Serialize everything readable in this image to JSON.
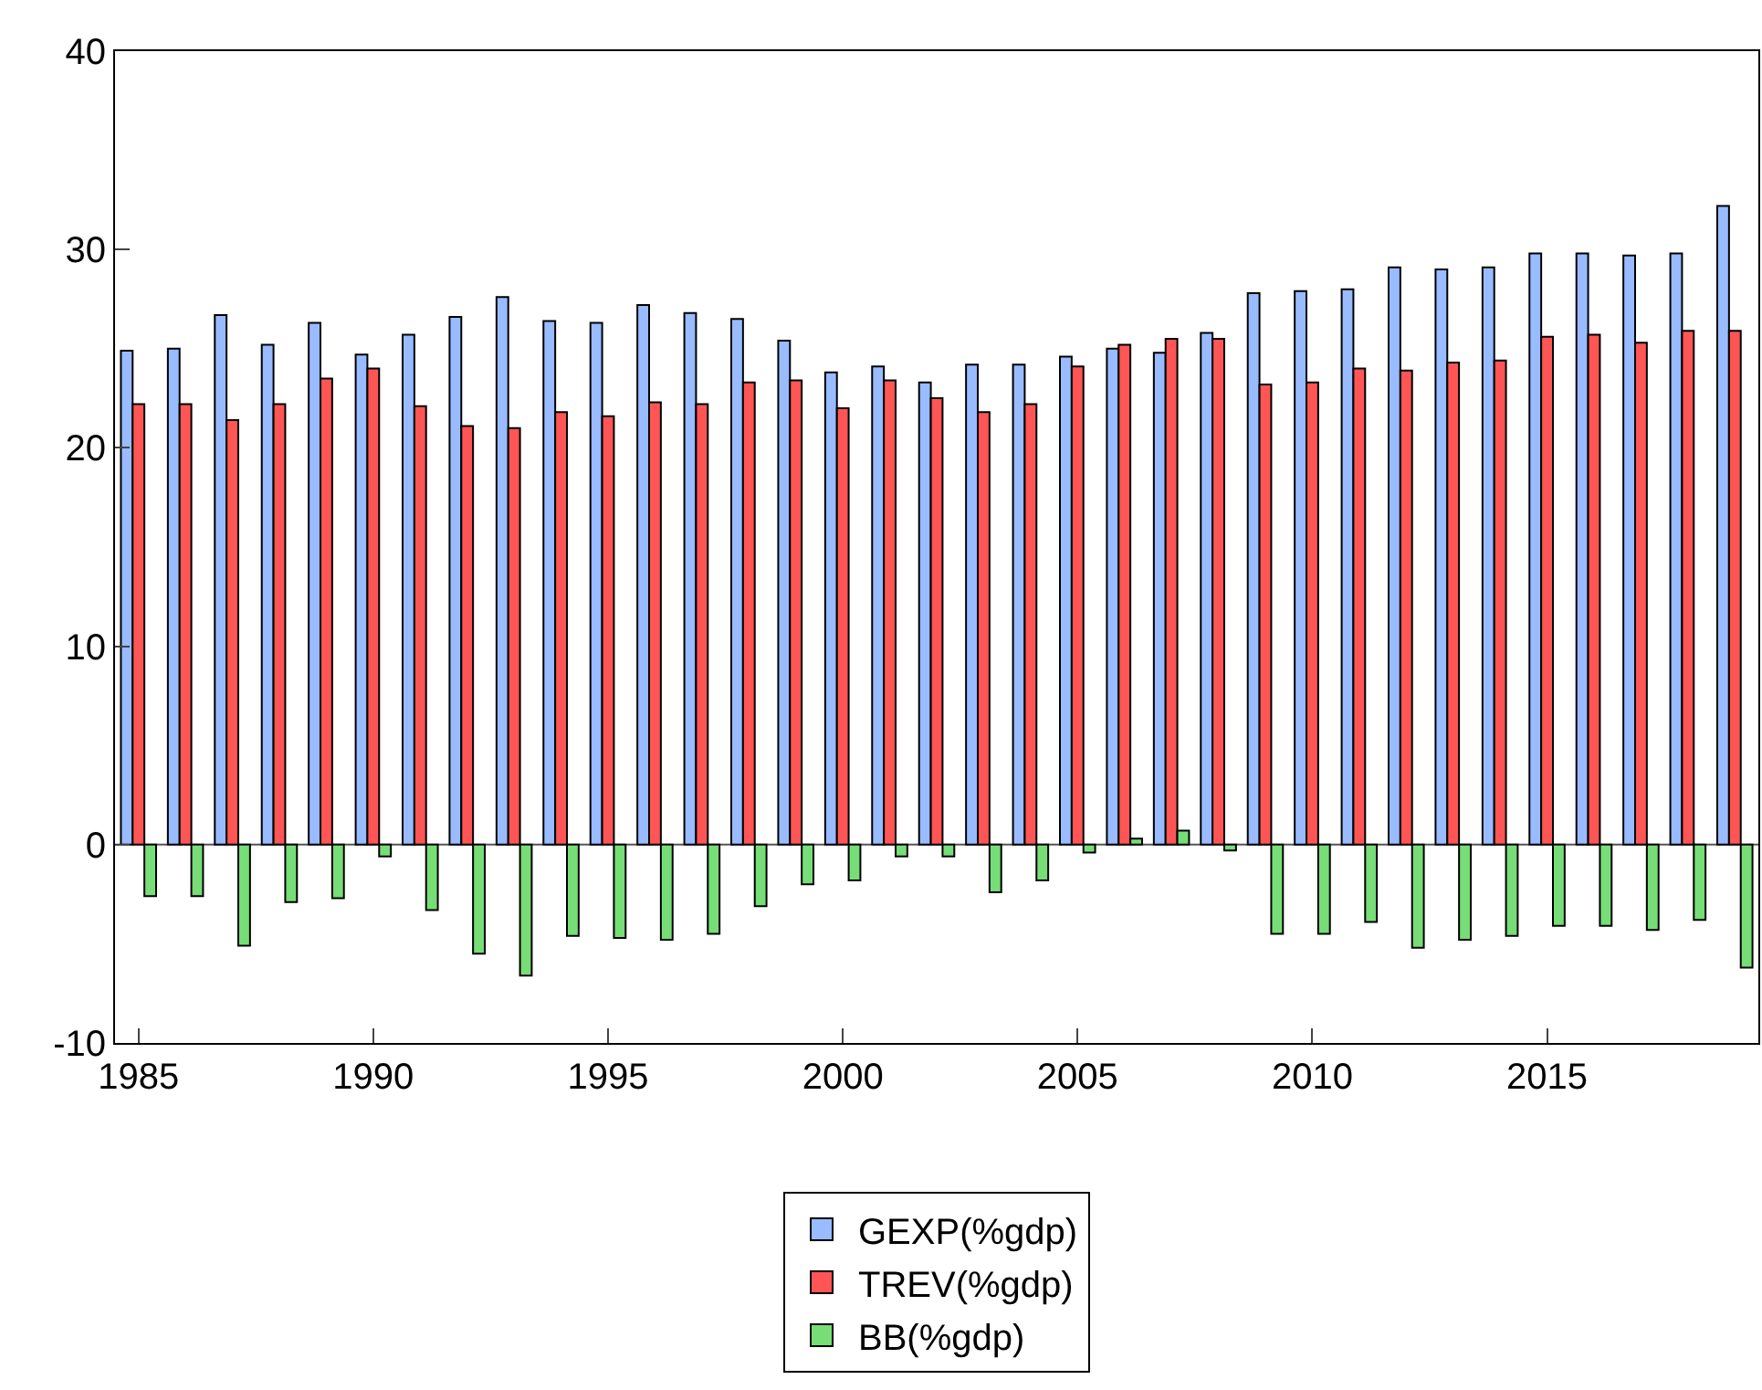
{
  "chart_data": {
    "type": "bar",
    "x": [
      1985,
      1986,
      1987,
      1988,
      1989,
      1990,
      1991,
      1992,
      1993,
      1994,
      1995,
      1996,
      1997,
      1998,
      1999,
      2000,
      2001,
      2002,
      2003,
      2004,
      2005,
      2006,
      2007,
      2008,
      2009,
      2010,
      2011,
      2012,
      2013,
      2014,
      2015,
      2016,
      2017,
      2018,
      2019
    ],
    "series": [
      {
        "name": "GEXP(%gdp)",
        "color": "#99bbff",
        "values": [
          24.9,
          25.0,
          26.7,
          25.2,
          26.3,
          24.7,
          25.7,
          26.6,
          27.6,
          26.4,
          26.3,
          27.2,
          26.8,
          26.5,
          25.4,
          23.8,
          24.1,
          23.3,
          24.2,
          24.2,
          24.6,
          25.0,
          24.8,
          25.8,
          27.8,
          27.9,
          28.0,
          29.1,
          29.0,
          29.1,
          29.8,
          29.8,
          29.7,
          29.8,
          32.2
        ]
      },
      {
        "name": "TREV(%gdp)",
        "color": "#ff5555",
        "values": [
          22.2,
          22.2,
          21.4,
          22.2,
          23.5,
          24.0,
          22.1,
          21.1,
          21.0,
          21.8,
          21.6,
          22.3,
          22.2,
          23.3,
          23.4,
          22.0,
          23.4,
          22.5,
          21.8,
          22.2,
          24.1,
          25.2,
          25.5,
          25.5,
          23.2,
          23.3,
          24.0,
          23.9,
          24.3,
          24.4,
          25.6,
          25.7,
          25.3,
          25.9,
          25.9
        ]
      },
      {
        "name": "BB(%gdp)",
        "color": "#77dd77",
        "values": [
          -2.6,
          -2.6,
          -5.1,
          -2.9,
          -2.7,
          -0.6,
          -3.3,
          -5.5,
          -6.6,
          -4.6,
          -4.7,
          -4.8,
          -4.5,
          -3.1,
          -2.0,
          -1.8,
          -0.6,
          -0.6,
          -2.4,
          -1.8,
          -0.4,
          0.3,
          0.7,
          -0.3,
          -4.5,
          -4.5,
          -3.9,
          -5.2,
          -4.8,
          -4.6,
          -4.1,
          -4.1,
          -4.3,
          -3.8,
          -6.2
        ]
      }
    ],
    "xlim": [
      1984.5,
      2019.5
    ],
    "xticks": [
      1985,
      1990,
      1995,
      2000,
      2005,
      2010,
      2015
    ],
    "ylim": [
      -10,
      40
    ],
    "yticks": [
      -10,
      0,
      10,
      20,
      30,
      40
    ],
    "ref_lines": [
      {
        "axis": "y",
        "value": 0,
        "color": "#555555"
      }
    ],
    "grid": false,
    "legend": "bottom"
  }
}
